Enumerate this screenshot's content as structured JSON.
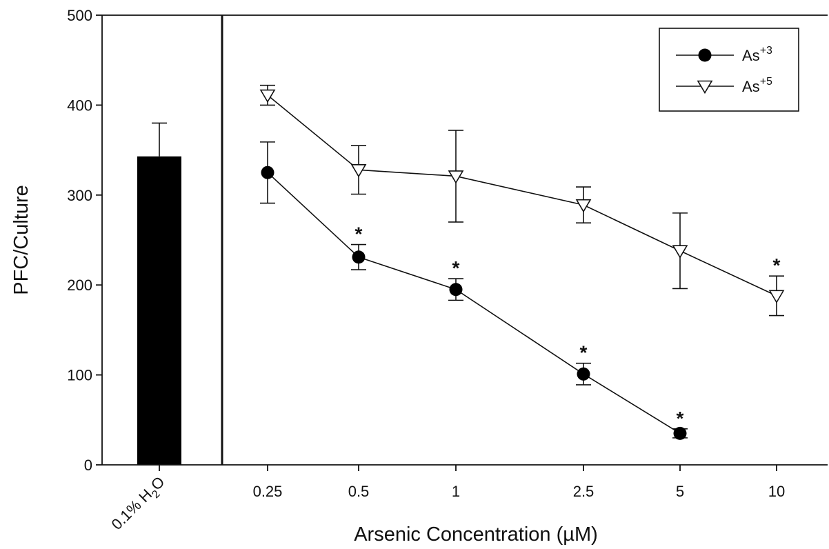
{
  "chart_data": {
    "type": "line",
    "ylabel": "PFC/Culture",
    "xlabel": "Arsenic Concentration (µM)",
    "ylim": [
      0,
      500
    ],
    "yticks": [
      "0",
      "100",
      "200",
      "300",
      "400",
      "500"
    ],
    "grid": false,
    "legend_position": "top-right",
    "control": {
      "label_prefix": "0.1% H",
      "label_subscript": "2",
      "label_suffix": "O",
      "value": 343,
      "err": 37
    },
    "categories": [
      "0.25",
      "0.5",
      "1",
      "2.5",
      "5",
      "10"
    ],
    "series": [
      {
        "name_base": "As",
        "name_sup": "+3",
        "marker": "filled-circle",
        "values": [
          325,
          231,
          195,
          101,
          35,
          null
        ],
        "errors": [
          34,
          14,
          12,
          12,
          5,
          null
        ],
        "significant": [
          false,
          true,
          true,
          true,
          true,
          false
        ]
      },
      {
        "name_base": "As",
        "name_sup": "+5",
        "marker": "open-triangle-down",
        "values": [
          411,
          328,
          321,
          289,
          238,
          188
        ],
        "errors": [
          11,
          27,
          51,
          20,
          42,
          22
        ],
        "significant": [
          false,
          false,
          false,
          false,
          false,
          true
        ]
      }
    ],
    "significance_marker": "*"
  }
}
